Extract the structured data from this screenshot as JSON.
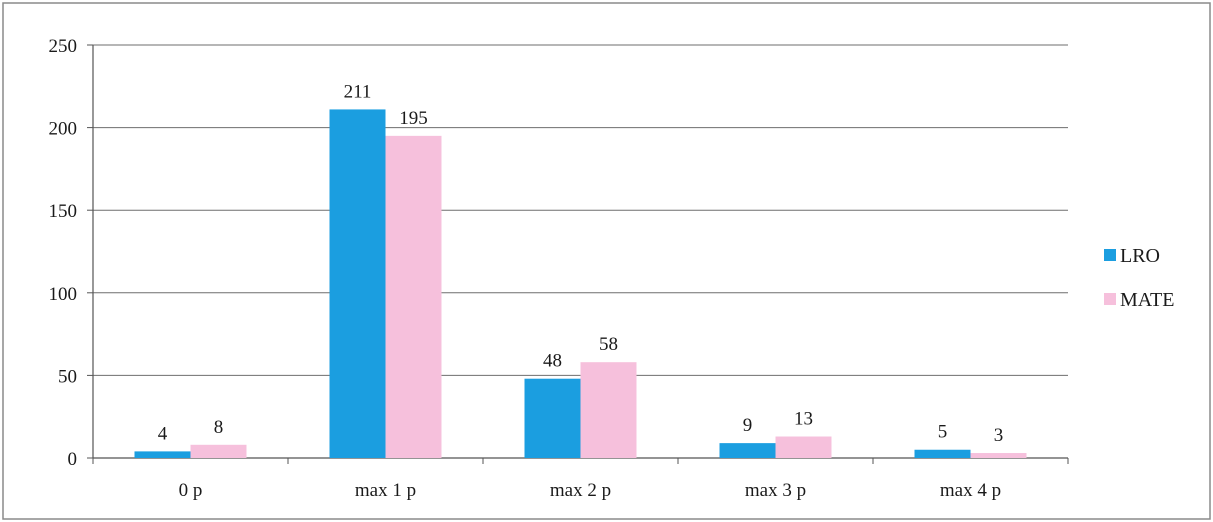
{
  "chart_data": {
    "type": "bar",
    "categories": [
      "0 p",
      "max 1 p",
      "max 2 p",
      "max 3 p",
      "max 4 p"
    ],
    "series": [
      {
        "name": "LRO",
        "values": [
          4,
          211,
          48,
          9,
          5
        ],
        "color": "#1b9ee0"
      },
      {
        "name": "MATE",
        "values": [
          8,
          195,
          58,
          13,
          3
        ],
        "color": "#f6c0dc"
      }
    ],
    "ylim": [
      0,
      250
    ],
    "yticks": [
      0,
      50,
      100,
      150,
      200,
      250
    ],
    "grid": true,
    "legend_position": "right"
  }
}
